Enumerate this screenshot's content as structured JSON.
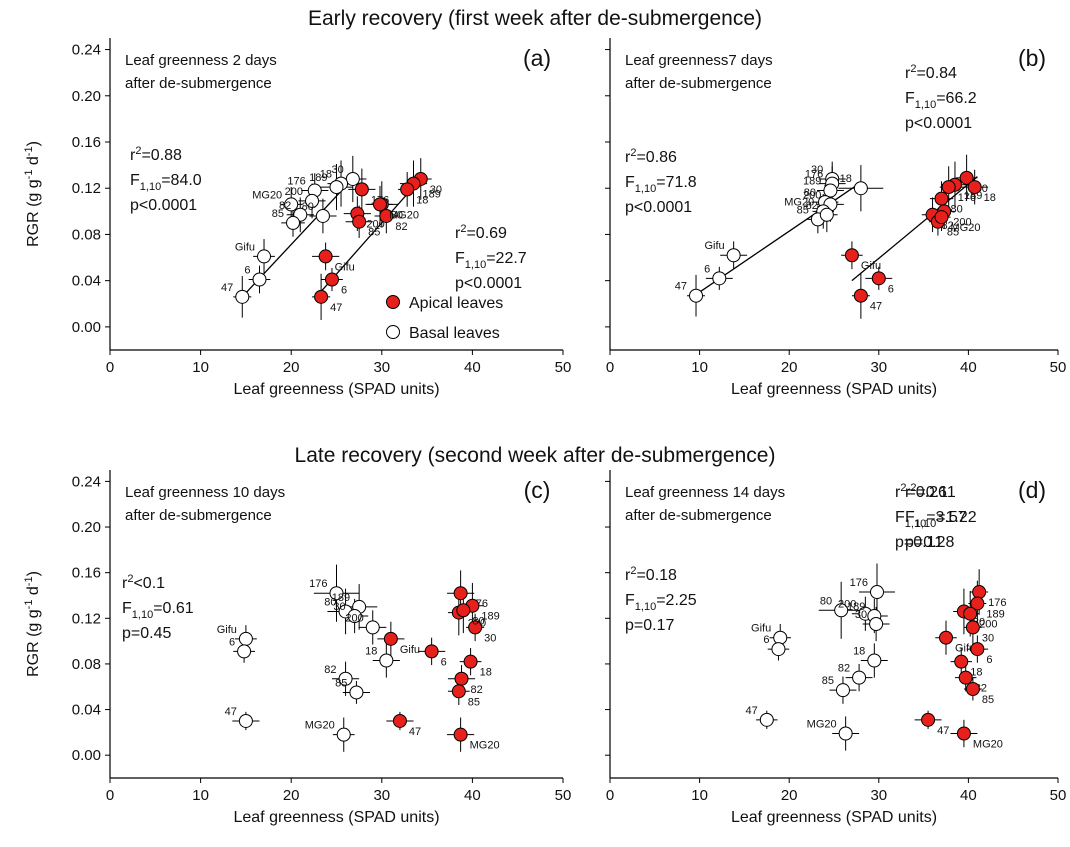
{
  "row_titles": [
    "Early recovery (first week after de-submergence)",
    "Late recovery (second week after de-submergence)"
  ],
  "chart_data": [
    {
      "type": "scatter",
      "panel_label": "(a)",
      "note": [
        "Leaf greenness 2 days",
        "after de-submergence"
      ],
      "xlabel": "Leaf greenness (SPAD units)",
      "ylabel": [
        "RGR (g g",
        {
          "sup": "-1"
        },
        " d",
        {
          "sup": "-1"
        },
        ")"
      ],
      "xlim": [
        0,
        50
      ],
      "xticks": [
        0,
        10,
        20,
        30,
        40,
        50
      ],
      "ylim": [
        -0.02,
        0.25
      ],
      "yticks": [
        {
          "value": 0,
          "label": "0.00"
        },
        0.04,
        0.08,
        0.12,
        0.16,
        {
          "value": 0.2,
          "label": "0.20"
        },
        0.24
      ],
      "legend": "lower right",
      "stats": [
        [
          [
            "r",
            {
              "sup": "2"
            },
            "=0.88"
          ],
          [
            "F",
            {
              "sub": "1,10"
            },
            "=84.0"
          ],
          [
            "p<0.0001"
          ]
        ],
        [
          [
            "r",
            {
              "sup": "2"
            },
            "=0.69"
          ],
          [
            "F",
            {
              "sub": "1,10"
            },
            "=22.7"
          ],
          [
            "p<0.0001"
          ]
        ]
      ],
      "series": [
        {
          "name": "Apical leaves",
          "color": "#e8201c",
          "labels": [
            "30",
            "189",
            "18",
            "80",
            "176",
            "200",
            "82",
            "85",
            "MG20",
            "Gifu",
            "6",
            "47"
          ],
          "x": [
            34.3,
            33.5,
            32.8,
            30.0,
            27.8,
            27.3,
            30.5,
            27.5,
            29.8,
            23.8,
            24.5,
            23.3
          ],
          "values": [
            0.128,
            0.124,
            0.119,
            0.106,
            0.119,
            0.098,
            0.096,
            0.091,
            0.106,
            0.061,
            0.041,
            0.026
          ],
          "xerr": [
            1.2,
            1.5,
            1.0,
            1.8,
            1.5,
            1.5,
            1.3,
            1.5,
            1.4,
            1.5,
            1.2,
            1.0
          ],
          "yerr": [
            0.018,
            0.02,
            0.015,
            0.02,
            0.018,
            0.015,
            0.015,
            0.014,
            0.016,
            0.012,
            0.01,
            0.02
          ],
          "fit": {
            "x": [
              23.0,
              34.5
            ],
            "y": [
              0.028,
              0.13
            ]
          }
        },
        {
          "name": "Basal leaves",
          "color": "#ffffff",
          "labels": [
            "30",
            "18",
            "189",
            "176",
            "200",
            "80",
            "MG20",
            "82",
            "85",
            "Gifu",
            "6",
            "47"
          ],
          "x": [
            26.8,
            25.5,
            25.0,
            22.6,
            22.3,
            23.5,
            20.0,
            21.0,
            20.2,
            17.0,
            16.5,
            14.6
          ],
          "values": [
            0.128,
            0.124,
            0.121,
            0.118,
            0.109,
            0.096,
            0.106,
            0.097,
            0.09,
            0.061,
            0.041,
            0.026
          ],
          "xerr": [
            1.5,
            1.5,
            1.8,
            1.5,
            1.5,
            1.5,
            1.2,
            1.5,
            1.3,
            1.2,
            1.2,
            1.0
          ],
          "yerr": [
            0.02,
            0.02,
            0.02,
            0.015,
            0.015,
            0.015,
            0.015,
            0.015,
            0.012,
            0.015,
            0.012,
            0.018
          ],
          "fit": {
            "x": [
              14.6,
              27.0
            ],
            "y": [
              0.026,
              0.13
            ]
          }
        }
      ]
    },
    {
      "type": "scatter",
      "panel_label": "(b)",
      "note": [
        "Leaf greenness7 days",
        "after de-submergence"
      ],
      "xlabel": "Leaf greenness (SPAD units)",
      "xlim": [
        0,
        50
      ],
      "xticks": [
        0,
        10,
        20,
        30,
        40,
        50
      ],
      "ylim": [
        -0.02,
        0.25
      ],
      "yticks": [
        0,
        0.04,
        0.08,
        0.12,
        0.16,
        0.2,
        0.24
      ],
      "stats": [
        [
          [
            "r",
            {
              "sup": "2"
            },
            "=0.84"
          ],
          [
            "F",
            {
              "sub": "1,10"
            },
            "=66.2"
          ],
          [
            "p<0.0001"
          ]
        ],
        [
          [
            "r",
            {
              "sup": "2"
            },
            "=0.86"
          ],
          [
            "F",
            {
              "sub": "1,10"
            },
            "=71.8"
          ],
          [
            "p<0.0001"
          ]
        ]
      ],
      "series": [
        {
          "name": "Apical leaves",
          "color": "#e8201c",
          "labels": [
            "30",
            "189",
            "176",
            "18",
            "80",
            "82",
            "200",
            "85",
            "MG20",
            "Gifu",
            "6",
            "47"
          ],
          "x": [
            39.8,
            38.5,
            37.8,
            40.7,
            37.0,
            36.0,
            37.3,
            36.6,
            37.0,
            27.0,
            30.0,
            28.0
          ],
          "values": [
            0.129,
            0.123,
            0.121,
            0.121,
            0.111,
            0.097,
            0.1,
            0.091,
            0.095,
            0.062,
            0.042,
            0.027
          ],
          "xerr": [
            1.2,
            1.5,
            1.0,
            1.5,
            1.3,
            1.2,
            1.2,
            1.0,
            1.0,
            1.2,
            1.5,
            1.0
          ],
          "yerr": [
            0.02,
            0.02,
            0.018,
            0.015,
            0.015,
            0.015,
            0.015,
            0.012,
            0.012,
            0.012,
            0.01,
            0.02
          ],
          "fit": {
            "x": [
              27.0,
              41.0
            ],
            "y": [
              0.04,
              0.13
            ]
          }
        },
        {
          "name": "Basal leaves",
          "color": "#ffffff",
          "labels": [
            "30",
            "176",
            "189",
            "18",
            "80",
            "200",
            "MG20",
            "85",
            "82",
            "Gifu",
            "6",
            "47"
          ],
          "x": [
            24.8,
            24.8,
            24.6,
            28.0,
            24.0,
            24.6,
            23.8,
            23.2,
            24.2,
            13.8,
            12.2,
            9.6
          ],
          "values": [
            0.128,
            0.124,
            0.118,
            0.12,
            0.108,
            0.106,
            0.1,
            0.093,
            0.097,
            0.062,
            0.042,
            0.027
          ],
          "xerr": [
            1.5,
            1.5,
            1.5,
            2.5,
            1.5,
            1.5,
            1.2,
            1.2,
            1.2,
            1.5,
            1.5,
            1.0
          ],
          "yerr": [
            0.015,
            0.015,
            0.015,
            0.02,
            0.015,
            0.015,
            0.015,
            0.012,
            0.015,
            0.012,
            0.01,
            0.018
          ],
          "fit": {
            "x": [
              9.6,
              28.0
            ],
            "y": [
              0.028,
              0.125
            ]
          }
        }
      ]
    },
    {
      "type": "scatter",
      "panel_label": "(c)",
      "note": [
        "Leaf greenness 10 days",
        "after de-submergence"
      ],
      "xlabel": "Leaf greenness (SPAD units)",
      "ylabel": [
        "RGR (g g",
        {
          "sup": "-1"
        },
        " d",
        {
          "sup": "-1"
        },
        ")"
      ],
      "xlim": [
        0,
        50
      ],
      "xticks": [
        0,
        10,
        20,
        30,
        40,
        50
      ],
      "ylim": [
        -0.02,
        0.25
      ],
      "yticks": [
        {
          "value": 0,
          "label": "0.00"
        },
        0.04,
        0.08,
        0.12,
        0.16,
        {
          "value": 0.2,
          "label": "0.20"
        },
        0.24
      ],
      "stats": [
        [
          [
            "r",
            {
              "sup": "2"
            },
            "=0.11"
          ],
          [
            "F",
            {
              "sub": "1,10"
            },
            "=1.22"
          ],
          [
            "p=0.28"
          ]
        ],
        [
          [
            "r",
            {
              "sup": "2"
            },
            "<0.1"
          ],
          [
            "F",
            {
              "sub": "1,10"
            },
            "=0.61"
          ],
          [
            "p=0.45"
          ]
        ]
      ],
      "series": [
        {
          "name": "Apical leaves",
          "color": "#e8201c",
          "labels": [
            "176",
            "189",
            "200",
            "30",
            "Gifu",
            "6",
            "18",
            "82",
            "85",
            "47",
            "MG20",
            "80"
          ],
          "x": [
            38.7,
            40.0,
            38.5,
            40.3,
            31.0,
            35.5,
            39.8,
            38.8,
            38.5,
            32.0,
            38.7,
            39.0
          ],
          "values": [
            0.142,
            0.131,
            0.125,
            0.112,
            0.102,
            0.091,
            0.082,
            0.067,
            0.056,
            0.03,
            0.018,
            0.127
          ],
          "xerr": [
            1.5,
            1.2,
            1.2,
            1.0,
            1.5,
            1.5,
            1.2,
            1.5,
            1.2,
            1.5,
            1.5,
            1.0
          ],
          "yerr": [
            0.02,
            0.02,
            0.02,
            0.012,
            0.015,
            0.012,
            0.012,
            0.012,
            0.012,
            0.008,
            0.015,
            0.02
          ]
        },
        {
          "name": "Basal leaves",
          "color": "#ffffff",
          "labels": [
            "176",
            "189",
            "80",
            "30",
            "200",
            "18",
            "82",
            "85",
            "Gifu",
            "6",
            "47",
            "MG20"
          ],
          "x": [
            25.0,
            27.5,
            26.0,
            27.0,
            29.0,
            30.5,
            26.0,
            27.2,
            15.0,
            14.8,
            15.0,
            25.8
          ],
          "values": [
            0.142,
            0.13,
            0.126,
            0.122,
            0.112,
            0.083,
            0.067,
            0.055,
            0.102,
            0.091,
            0.03,
            0.018
          ],
          "xerr": [
            2.5,
            2.0,
            2.0,
            1.5,
            1.5,
            1.5,
            1.5,
            1.5,
            1.2,
            1.2,
            1.5,
            1.2
          ],
          "yerr": [
            0.025,
            0.02,
            0.02,
            0.015,
            0.015,
            0.015,
            0.015,
            0.01,
            0.012,
            0.01,
            0.008,
            0.015
          ]
        }
      ]
    },
    {
      "type": "scatter",
      "panel_label": "(d)",
      "note": [
        "Leaf greenness 14 days",
        "after de-submergence"
      ],
      "xlabel": "Leaf greenness (SPAD units)",
      "xlim": [
        0,
        50
      ],
      "xticks": [
        0,
        10,
        20,
        30,
        40,
        50
      ],
      "ylim": [
        -0.02,
        0.25
      ],
      "yticks": [
        0,
        0.04,
        0.08,
        0.12,
        0.16,
        0.2,
        0.24
      ],
      "stats": [
        [
          [
            "r",
            {
              "sup": "2"
            },
            "=0.26"
          ],
          [
            "F",
            {
              "sub": "1,10"
            },
            "=3.57"
          ],
          [
            "p=0.11"
          ]
        ],
        [
          [
            "r",
            {
              "sup": "2"
            },
            "=0.18"
          ],
          [
            "F",
            {
              "sub": "1,10"
            },
            "=2.25"
          ],
          [
            "p=0.17"
          ]
        ]
      ],
      "series": [
        {
          "name": "Apical leaves",
          "color": "#e8201c",
          "labels": [
            "176",
            "189",
            "80",
            "200",
            "30",
            "Gifu",
            "6",
            "18",
            "82",
            "85",
            "47",
            "MG20"
          ],
          "x": [
            41.2,
            41.0,
            39.5,
            40.2,
            40.5,
            37.5,
            41.0,
            39.2,
            39.7,
            40.5,
            35.5,
            39.5
          ],
          "values": [
            0.143,
            0.133,
            0.126,
            0.124,
            0.112,
            0.103,
            0.093,
            0.082,
            0.068,
            0.058,
            0.031,
            0.019
          ],
          "xerr": [
            1.0,
            1.0,
            1.2,
            1.0,
            1.0,
            1.2,
            1.2,
            1.2,
            1.2,
            1.0,
            1.5,
            1.5
          ],
          "yerr": [
            0.02,
            0.02,
            0.02,
            0.02,
            0.015,
            0.015,
            0.012,
            0.012,
            0.012,
            0.01,
            0.008,
            0.012
          ]
        },
        {
          "name": "Basal leaves",
          "color": "#ffffff",
          "labels": [
            "176",
            "80",
            "200",
            "189",
            "30",
            "Gifu",
            "6",
            "18",
            "82",
            "85",
            "47",
            "MG20"
          ],
          "x": [
            29.8,
            25.8,
            28.5,
            29.5,
            29.7,
            19.0,
            18.8,
            29.5,
            27.8,
            26.0,
            17.5,
            26.3
          ],
          "values": [
            0.143,
            0.127,
            0.124,
            0.122,
            0.115,
            0.103,
            0.093,
            0.083,
            0.068,
            0.057,
            0.031,
            0.019
          ],
          "xerr": [
            2.0,
            2.5,
            1.5,
            1.5,
            1.5,
            1.2,
            1.2,
            1.5,
            1.5,
            1.5,
            1.2,
            1.5
          ],
          "yerr": [
            0.025,
            0.025,
            0.015,
            0.015,
            0.015,
            0.012,
            0.01,
            0.015,
            0.012,
            0.012,
            0.008,
            0.015
          ]
        }
      ]
    }
  ]
}
